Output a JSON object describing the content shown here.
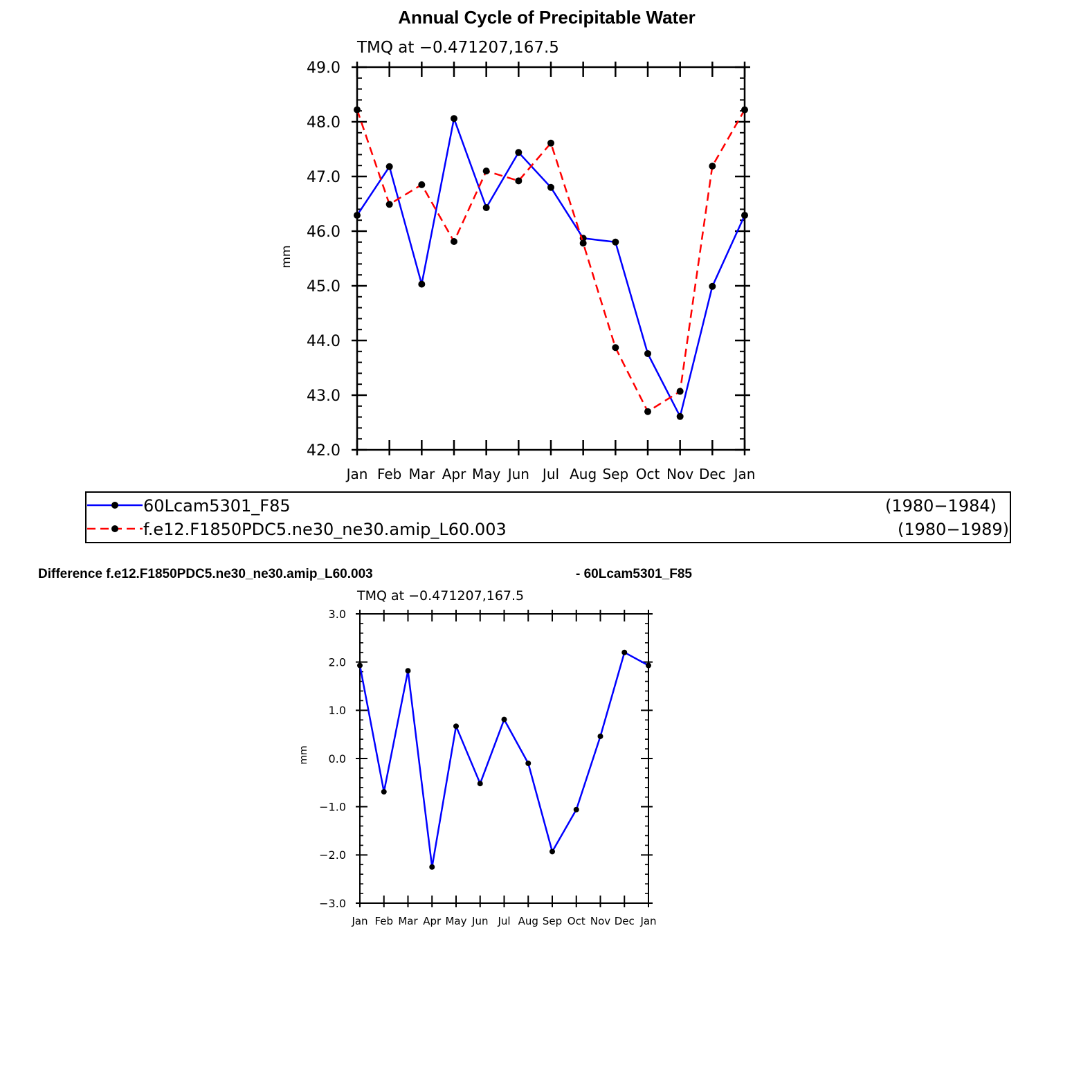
{
  "title": "Annual Cycle of Precipitable Water",
  "diff_title_left": "Difference f.e12.F1850PDC5.ne30_ne30.amip_L60.003",
  "diff_title_right": "- 60Lcam5301_F85",
  "colors": {
    "series1": "#0000ff",
    "series2": "#ff0000",
    "marker": "#000000"
  },
  "legend": [
    {
      "name": "60Lcam5301_F85",
      "years": "(1980−1984)",
      "color": "#0000ff",
      "dash": "solid",
      "marker": "filled-circle"
    },
    {
      "name": "f.e12.F1850PDC5.ne30_ne30.amip_L60.003",
      "years": "(1980−1989)",
      "color": "#ff0000",
      "dash": "dashed",
      "marker": "filled-circle"
    }
  ],
  "chart_data": [
    {
      "type": "line",
      "subtitle": "TMQ  at  −0.471207,167.5",
      "ylabel": "mm",
      "ylim": [
        42.0,
        49.0
      ],
      "yticks": [
        "42.0",
        "43.0",
        "44.0",
        "45.0",
        "46.0",
        "47.0",
        "48.0",
        "49.0"
      ],
      "categories": [
        "Jan",
        "Feb",
        "Mar",
        "Apr",
        "May",
        "Jun",
        "Jul",
        "Aug",
        "Sep",
        "Oct",
        "Nov",
        "Dec",
        "Jan"
      ],
      "series": [
        {
          "name": "60Lcam5301_F85",
          "color": "#0000ff",
          "dash": "solid",
          "values": [
            46.29,
            47.18,
            45.03,
            48.06,
            46.43,
            47.44,
            46.8,
            45.87,
            45.8,
            43.76,
            42.61,
            44.99,
            46.29
          ]
        },
        {
          "name": "f.e12.F1850PDC5.ne30_ne30.amip_L60.003",
          "color": "#ff0000",
          "dash": "dashed",
          "values": [
            48.22,
            46.49,
            46.85,
            45.81,
            47.1,
            46.92,
            47.61,
            45.78,
            43.87,
            42.7,
            43.07,
            47.19,
            48.22
          ]
        }
      ],
      "grid": false
    },
    {
      "type": "line",
      "subtitle": "TMQ  at  −0.471207,167.5",
      "ylabel": "mm",
      "ylim": [
        -3.0,
        3.0
      ],
      "yticks": [
        "−3.0",
        "−2.0",
        "−1.0",
        "0.0",
        "1.0",
        "2.0",
        "3.0"
      ],
      "categories": [
        "Jan",
        "Feb",
        "Mar",
        "Apr",
        "May",
        "Jun",
        "Jul",
        "Aug",
        "Sep",
        "Oct",
        "Nov",
        "Dec",
        "Jan"
      ],
      "series": [
        {
          "color": "#0000ff",
          "dash": "solid",
          "values": [
            1.93,
            -0.69,
            1.82,
            -2.25,
            0.67,
            -0.52,
            0.81,
            -0.1,
            -1.93,
            -1.06,
            0.46,
            2.2,
            1.93
          ]
        }
      ],
      "grid": false
    }
  ]
}
